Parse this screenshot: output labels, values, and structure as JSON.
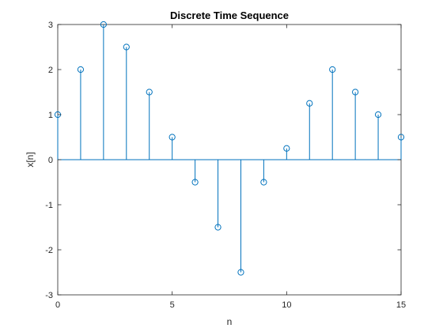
{
  "chart_data": {
    "type": "stem",
    "title": "Discrete Time Sequence",
    "xlabel": "n",
    "ylabel": "x[n]",
    "x": [
      0,
      1,
      2,
      3,
      4,
      5,
      6,
      7,
      8,
      9,
      10,
      11,
      12,
      13,
      14,
      15
    ],
    "y": [
      1,
      2,
      3,
      2.5,
      1.5,
      0.5,
      -0.5,
      -1.5,
      -2.5,
      -0.5,
      0.25,
      1.25,
      2,
      1.5,
      1,
      0.5
    ],
    "xlim": [
      0,
      15
    ],
    "ylim": [
      -3,
      3
    ],
    "xticks": [
      0,
      5,
      10,
      15
    ],
    "xtick_labels": [
      "0",
      "5",
      "10",
      "15"
    ],
    "yticks": [
      -3,
      -2,
      -1,
      0,
      1,
      2,
      3
    ],
    "ytick_labels": [
      "-3",
      "-2",
      "-1",
      "0",
      "1",
      "2",
      "3"
    ],
    "grid": false,
    "box": true,
    "marker": "circle-open",
    "color": "#0072BD",
    "axis_color": "#262626"
  }
}
